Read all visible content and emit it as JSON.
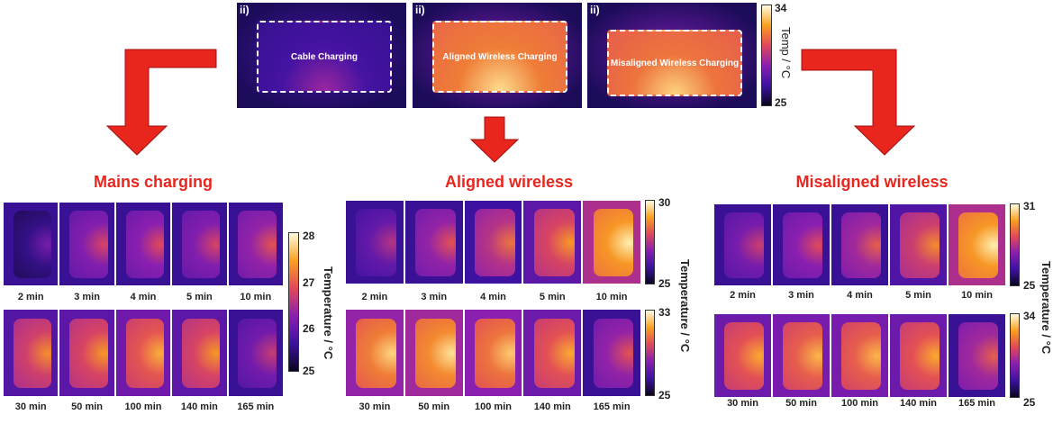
{
  "top": {
    "images": [
      {
        "tag": "ii)",
        "label": "Cable Charging",
        "heat": 0.22
      },
      {
        "tag": "ii)",
        "label": "Aligned Wireless Charging",
        "heat": 0.72
      },
      {
        "tag": "ii)",
        "label": "Misaligned Wireless Charging",
        "heat": 0.7
      }
    ],
    "colorbar": {
      "max": "34",
      "min": "25",
      "label": "Temp / °C"
    }
  },
  "panels": [
    {
      "title": "Mains charging",
      "row1": {
        "times": [
          "2 min",
          "3 min",
          "4 min",
          "5 min",
          "10 min"
        ],
        "heat": [
          0.15,
          0.38,
          0.4,
          0.38,
          0.42
        ]
      },
      "row2": {
        "times": [
          "30 min",
          "50 min",
          "100 min",
          "140 min",
          "165 min"
        ],
        "heat": [
          0.56,
          0.58,
          0.63,
          0.58,
          0.34
        ]
      },
      "colorbar": {
        "ticks": [
          "28",
          "27",
          "26",
          "25"
        ],
        "label": "Temperature / °C"
      }
    },
    {
      "title": "Aligned wireless",
      "row1": {
        "times": [
          "2 min",
          "3 min",
          "4 min",
          "5 min",
          "10 min"
        ],
        "heat": [
          0.3,
          0.42,
          0.5,
          0.58,
          0.78
        ]
      },
      "row2": {
        "times": [
          "30 min",
          "50 min",
          "100 min",
          "140 min",
          "165 min"
        ],
        "heat": [
          0.72,
          0.75,
          0.7,
          0.62,
          0.42
        ]
      },
      "colorbar_top": {
        "max": "30",
        "min": "25"
      },
      "colorbar_bottom": {
        "max": "33",
        "min": "25"
      },
      "label": "Temperature / °C"
    },
    {
      "title": "Misaligned wireless",
      "row1": {
        "times": [
          "2 min",
          "3 min",
          "4 min",
          "5 min",
          "10 min"
        ],
        "heat": [
          0.35,
          0.4,
          0.45,
          0.55,
          0.78
        ]
      },
      "row2": {
        "times": [
          "30 min",
          "50 min",
          "100 min",
          "140 min",
          "165 min"
        ],
        "heat": [
          0.62,
          0.65,
          0.65,
          0.62,
          0.45
        ]
      },
      "colorbar_top": {
        "max": "31",
        "min": "25"
      },
      "colorbar_bottom": {
        "max": "34",
        "min": "25"
      },
      "label": "Temperature / °C"
    }
  ],
  "colors": {
    "arrow": "#e8261e",
    "title": "#e8261e"
  }
}
